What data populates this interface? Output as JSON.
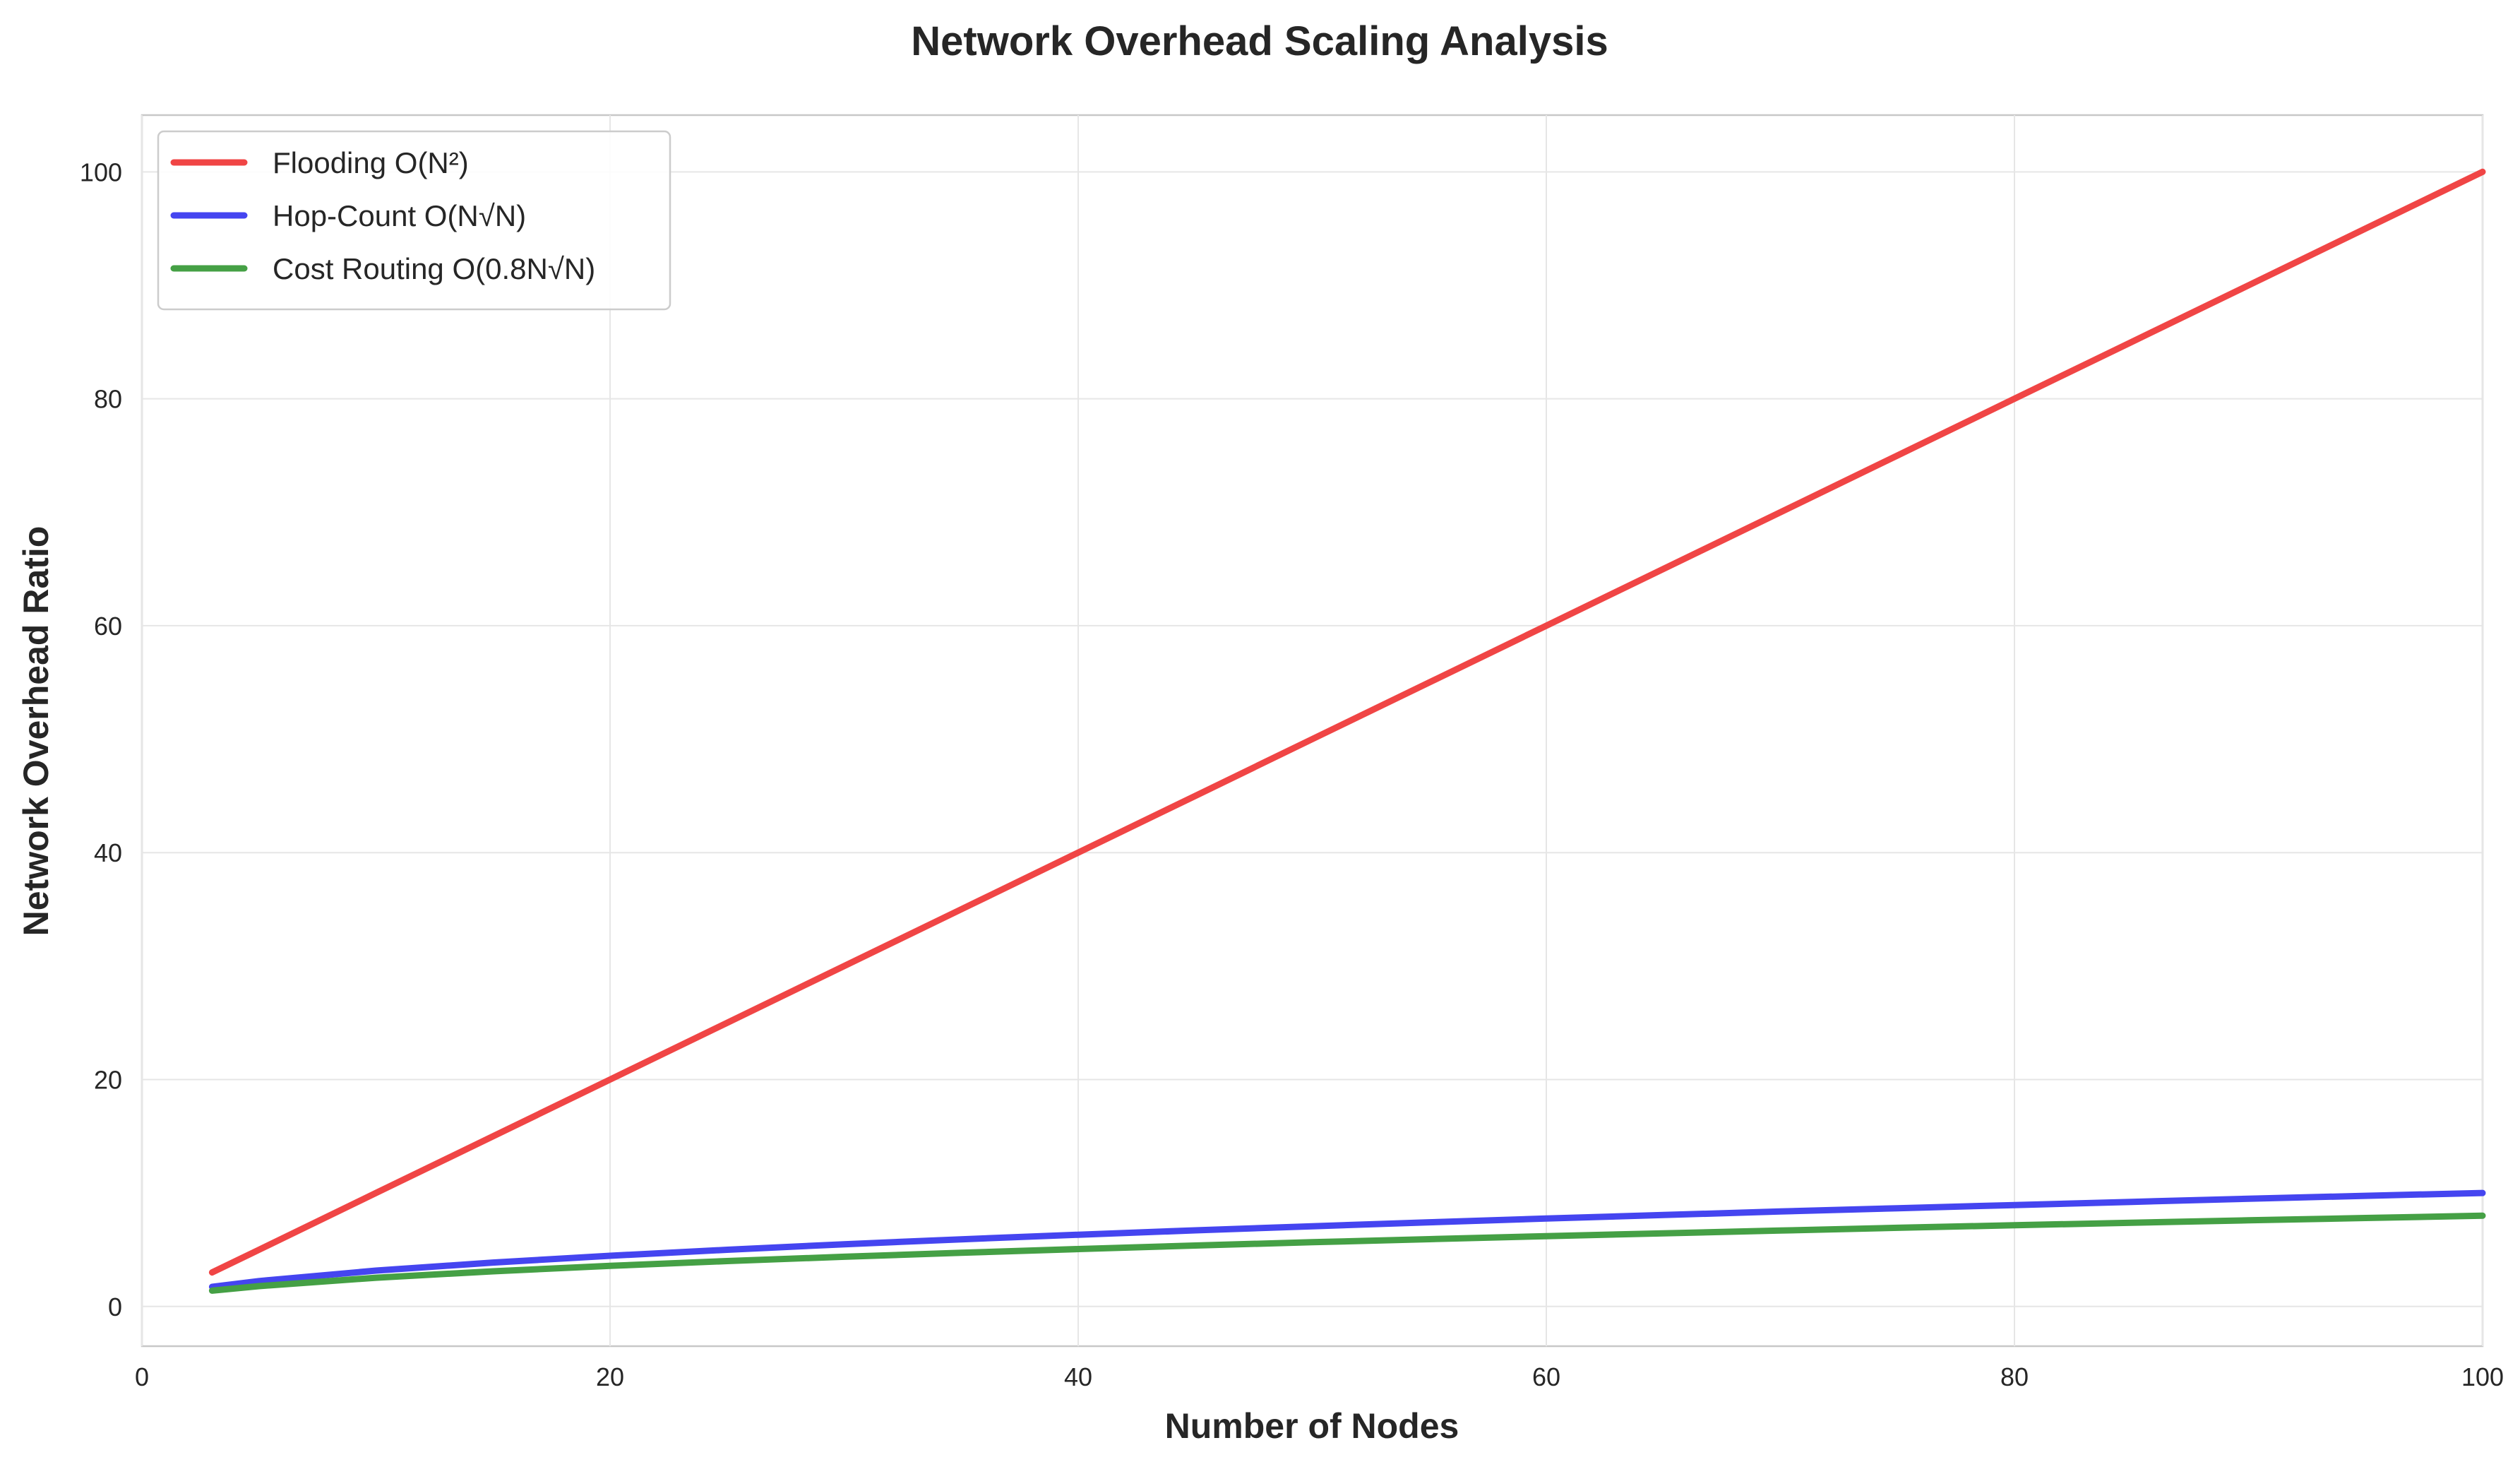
{
  "chart_data": {
    "type": "line",
    "title": "Network Overhead Scaling Analysis",
    "xlabel": "Number of Nodes",
    "ylabel": "Network Overhead Ratio",
    "xlim": [
      0,
      100
    ],
    "ylim": [
      -3.5,
      105
    ],
    "xticks": [
      0,
      20,
      40,
      60,
      80,
      100
    ],
    "yticks": [
      0,
      20,
      40,
      60,
      80,
      100
    ],
    "grid": true,
    "legend_position": "top-left",
    "series": [
      {
        "name": "Flooding O(N²)",
        "color": "#f04545",
        "x": [
          3,
          5,
          10,
          15,
          20,
          25,
          30,
          35,
          40,
          45,
          50,
          55,
          60,
          65,
          70,
          75,
          80,
          85,
          90,
          95,
          100
        ],
        "y": [
          3,
          5,
          10,
          15,
          20,
          25,
          30,
          35,
          40,
          45,
          50,
          55,
          60,
          65,
          70,
          75,
          80,
          85,
          90,
          95,
          100
        ]
      },
      {
        "name": "Hop-Count O(N√N)",
        "color": "#4545f0",
        "x": [
          3,
          5,
          10,
          15,
          20,
          25,
          30,
          35,
          40,
          45,
          50,
          55,
          60,
          65,
          70,
          75,
          80,
          85,
          90,
          95,
          100
        ],
        "y": [
          1.73,
          2.24,
          3.16,
          3.87,
          4.47,
          5.0,
          5.48,
          5.92,
          6.32,
          6.71,
          7.07,
          7.42,
          7.75,
          8.06,
          8.37,
          8.66,
          8.94,
          9.22,
          9.49,
          9.75,
          10.0
        ]
      },
      {
        "name": "Cost Routing O(0.8N√N)",
        "color": "#45a045",
        "x": [
          3,
          5,
          10,
          15,
          20,
          25,
          30,
          35,
          40,
          45,
          50,
          55,
          60,
          65,
          70,
          75,
          80,
          85,
          90,
          95,
          100
        ],
        "y": [
          1.39,
          1.79,
          2.53,
          3.1,
          3.58,
          4.0,
          4.38,
          4.73,
          5.06,
          5.37,
          5.66,
          5.93,
          6.2,
          6.45,
          6.69,
          6.93,
          7.16,
          7.38,
          7.59,
          7.8,
          8.0
        ]
      }
    ]
  }
}
